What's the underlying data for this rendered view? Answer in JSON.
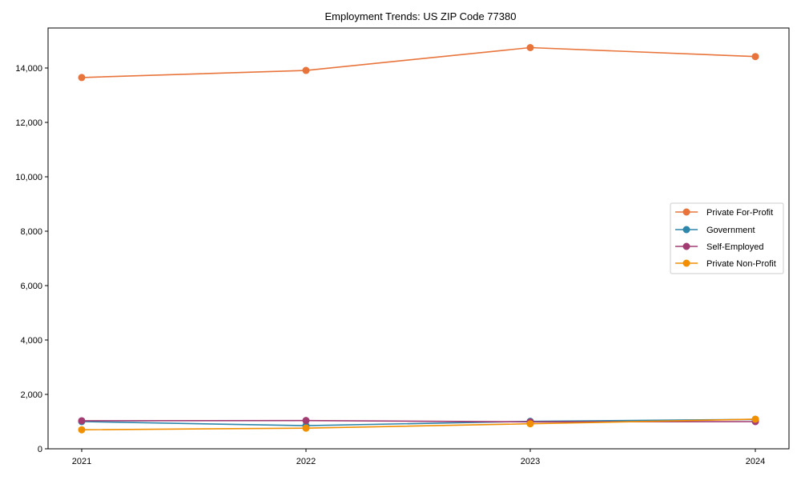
{
  "chart_data": {
    "type": "line",
    "title": "Employment Trends: US ZIP Code 77380",
    "xlabel": "",
    "ylabel": "",
    "categories": [
      "2021",
      "2022",
      "2023",
      "2024"
    ],
    "ylim": [
      0,
      15500
    ],
    "yticks": [
      0,
      2000,
      4000,
      6000,
      8000,
      10000,
      12000,
      14000
    ],
    "ytick_labels": [
      "0",
      "2,000",
      "4,000",
      "6,000",
      "8,000",
      "10,000",
      "12,000",
      "14,000"
    ],
    "grid": false,
    "legend_position": "center right",
    "series": [
      {
        "name": "Private For-Profit",
        "color": "#E8743B",
        "values": [
          13650,
          13910,
          14750,
          14420
        ]
      },
      {
        "name": "Government",
        "color": "#2E86AB",
        "values": [
          1000,
          850,
          1010,
          1080
        ]
      },
      {
        "name": "Self-Employed",
        "color": "#A23B72",
        "values": [
          1030,
          1040,
          990,
          1000
        ]
      },
      {
        "name": "Private Non-Profit",
        "color": "#F18F01",
        "values": [
          700,
          760,
          920,
          1090
        ]
      }
    ]
  }
}
